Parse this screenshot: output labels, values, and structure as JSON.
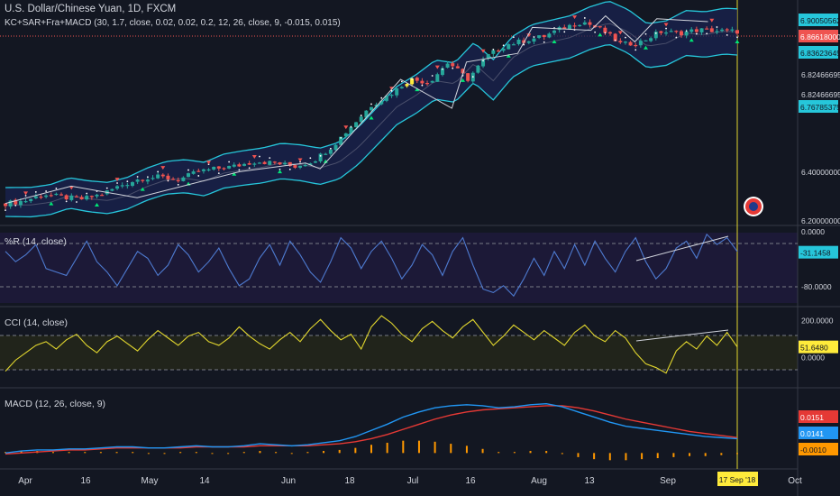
{
  "window": {
    "symbol_title": "U.S. Dollar/Chinese Yuan, 1D, FXCM",
    "main_indicator": "KC+SAR+Fra+MACD (30, 1.7, close, 0.02, 0.02, 0.2, 12, 26, close, 9, -0.015, 0.015)"
  },
  "colors": {
    "background": "#131722",
    "up_candle": "#26a69a",
    "down_candle": "#ef5350",
    "highlight_candle": "#ffeb3b",
    "keltner_band": "#26c6da",
    "wr_line": "#4e7bd1",
    "cci_line": "#e1d62e",
    "macd_line": "#2196f3",
    "signal_line": "#e53935",
    "histogram": "#ff9800",
    "cursor": "#e1d62e"
  },
  "chart_data": [
    {
      "type": "candlestick",
      "title": "U.S. Dollar/Chinese Yuan, 1D, FXCM",
      "price_scale_labels": [
        "6.90050562",
        "6.86618000",
        "6.83623645",
        "6.82466695",
        "6.82466695",
        "6.76785375",
        "6.40000000",
        "6.20000000"
      ],
      "price_badges": [
        {
          "text": "6.90050562",
          "style": "cyan"
        },
        {
          "text": "6.86618000",
          "style": "red"
        },
        {
          "text": "6.83623645",
          "style": "cyan"
        },
        {
          "text": "6.76785375",
          "style": "cyan"
        }
      ],
      "ylim": [
        6.2,
        6.95
      ],
      "cursor_date": "17 Sep '18",
      "close_path": [
        [
          "Mar 27",
          6.27
        ],
        [
          "Apr 02",
          6.279
        ],
        [
          "Apr 06",
          6.302
        ],
        [
          "Apr 10",
          6.291
        ],
        [
          "Apr 16",
          6.285
        ],
        [
          "Apr 20",
          6.302
        ],
        [
          "Apr 26",
          6.333
        ],
        [
          "May 02",
          6.356
        ],
        [
          "May 08",
          6.362
        ],
        [
          "May 14",
          6.352
        ],
        [
          "May 20",
          6.38
        ],
        [
          "May 26",
          6.391
        ],
        [
          "Jun 01",
          6.4
        ],
        [
          "Jun 05",
          6.416
        ],
        [
          "Jun 10",
          6.41
        ],
        [
          "Jun 14",
          6.398
        ],
        [
          "Jun 18",
          6.418
        ],
        [
          "Jun 22",
          6.47
        ],
        [
          "Jun 26",
          6.54
        ],
        [
          "Jul 02",
          6.61
        ],
        [
          "Jul 06",
          6.65
        ],
        [
          "Jul 10",
          6.7
        ],
        [
          "Jul 14",
          6.69
        ],
        [
          "Jul 18",
          6.76
        ],
        [
          "Jul 22",
          6.7
        ],
        [
          "Jul 26",
          6.78
        ],
        [
          "Jul 30",
          6.82
        ],
        [
          "Aug 03",
          6.835
        ],
        [
          "Aug 07",
          6.85
        ],
        [
          "Aug 11",
          6.88
        ],
        [
          "Aug 15",
          6.9
        ],
        [
          "Aug 19",
          6.87
        ],
        [
          "Aug 23",
          6.82
        ],
        [
          "Aug 27",
          6.83
        ],
        [
          "Aug 31",
          6.865
        ],
        [
          "Sep 04",
          6.86
        ],
        [
          "Sep 08",
          6.872
        ],
        [
          "Sep 12",
          6.868
        ],
        [
          "Sep 17",
          6.866
        ]
      ]
    },
    {
      "type": "line",
      "title": "%R (14, close)",
      "ylim": [
        -100,
        0
      ],
      "ticks": [
        0,
        -80
      ],
      "tick_labels": [
        "0.0000",
        "-80.0000"
      ],
      "last_value_label": "-31.1458",
      "values": [
        -30,
        -45,
        -35,
        -20,
        -55,
        -60,
        -65,
        -40,
        -15,
        -45,
        -60,
        -80,
        -55,
        -30,
        -40,
        -65,
        -50,
        -20,
        -35,
        -60,
        -45,
        -25,
        -55,
        -80,
        -70,
        -40,
        -20,
        -50,
        -15,
        -35,
        -60,
        -75,
        -45,
        -10,
        -25,
        -55,
        -30,
        -15,
        -40,
        -70,
        -50,
        -20,
        -35,
        -65,
        -30,
        -10,
        -50,
        -85,
        -90,
        -80,
        -95,
        -70,
        -40,
        -65,
        -30,
        -55,
        -20,
        -50,
        -15,
        -40,
        -60,
        -30,
        -10,
        -45,
        -70,
        -55,
        -25,
        -15,
        -40,
        -5,
        -20,
        -10,
        -30
      ]
    },
    {
      "type": "line",
      "title": "CCI (14, close)",
      "ylim": [
        -150,
        250
      ],
      "ticks": [
        200,
        0
      ],
      "tick_labels": [
        "200.0000",
        "0.0000"
      ],
      "last_value_label": "51.6480",
      "values": [
        -80,
        -20,
        20,
        60,
        80,
        40,
        90,
        120,
        60,
        20,
        80,
        110,
        70,
        30,
        90,
        140,
        100,
        60,
        110,
        130,
        80,
        60,
        100,
        160,
        110,
        70,
        40,
        90,
        130,
        80,
        150,
        200,
        140,
        90,
        120,
        40,
        160,
        220,
        180,
        120,
        80,
        150,
        190,
        140,
        100,
        160,
        200,
        130,
        60,
        110,
        170,
        130,
        90,
        140,
        100,
        60,
        130,
        170,
        110,
        80,
        140,
        100,
        20,
        -40,
        -60,
        -90,
        30,
        80,
        40,
        110,
        60,
        130,
        51.6
      ]
    },
    {
      "type": "line",
      "title": "MACD (12, 26, close, 9)",
      "ylim": [
        -0.012,
        0.06
      ],
      "value_labels": [
        "0.0151",
        "0.0141",
        "-0.0010"
      ],
      "x_tick_labels": [
        "Apr",
        "16",
        "May",
        "14",
        "Jun",
        "18",
        "Jul",
        "16",
        "Aug",
        "13",
        "Sep",
        "17 Sep '18",
        "Oct"
      ],
      "series": [
        {
          "name": "MACD",
          "values": [
            0.0,
            0.002,
            0.003,
            0.003,
            0.004,
            0.004,
            0.005,
            0.006,
            0.006,
            0.005,
            0.005,
            0.006,
            0.007,
            0.006,
            0.006,
            0.007,
            0.009,
            0.008,
            0.007,
            0.008,
            0.01,
            0.012,
            0.016,
            0.022,
            0.028,
            0.035,
            0.04,
            0.044,
            0.046,
            0.047,
            0.046,
            0.044,
            0.045,
            0.047,
            0.048,
            0.045,
            0.04,
            0.035,
            0.03,
            0.026,
            0.024,
            0.022,
            0.02,
            0.018,
            0.016,
            0.015,
            0.014
          ]
        },
        {
          "name": "Signal",
          "values": [
            -0.001,
            0.0,
            0.001,
            0.002,
            0.003,
            0.003,
            0.004,
            0.005,
            0.005,
            0.005,
            0.005,
            0.005,
            0.006,
            0.006,
            0.006,
            0.006,
            0.007,
            0.007,
            0.007,
            0.007,
            0.008,
            0.009,
            0.011,
            0.014,
            0.018,
            0.023,
            0.028,
            0.033,
            0.037,
            0.04,
            0.042,
            0.043,
            0.044,
            0.045,
            0.046,
            0.046,
            0.044,
            0.041,
            0.037,
            0.033,
            0.03,
            0.027,
            0.024,
            0.021,
            0.019,
            0.017,
            0.0151
          ]
        },
        {
          "name": "Histogram",
          "values": [
            0.001,
            0.002,
            0.002,
            0.001,
            0.001,
            0.001,
            0.001,
            0.001,
            0.001,
            0.0,
            0.0,
            0.001,
            0.001,
            0.0,
            0.0,
            0.001,
            0.002,
            0.001,
            0.0,
            0.001,
            0.002,
            0.003,
            0.005,
            0.008,
            0.01,
            0.012,
            0.012,
            0.011,
            0.009,
            0.007,
            0.004,
            0.001,
            0.001,
            0.002,
            0.002,
            -0.001,
            -0.004,
            -0.006,
            -0.007,
            -0.007,
            -0.006,
            -0.005,
            -0.004,
            -0.003,
            -0.003,
            -0.002,
            -0.001
          ]
        }
      ]
    }
  ]
}
